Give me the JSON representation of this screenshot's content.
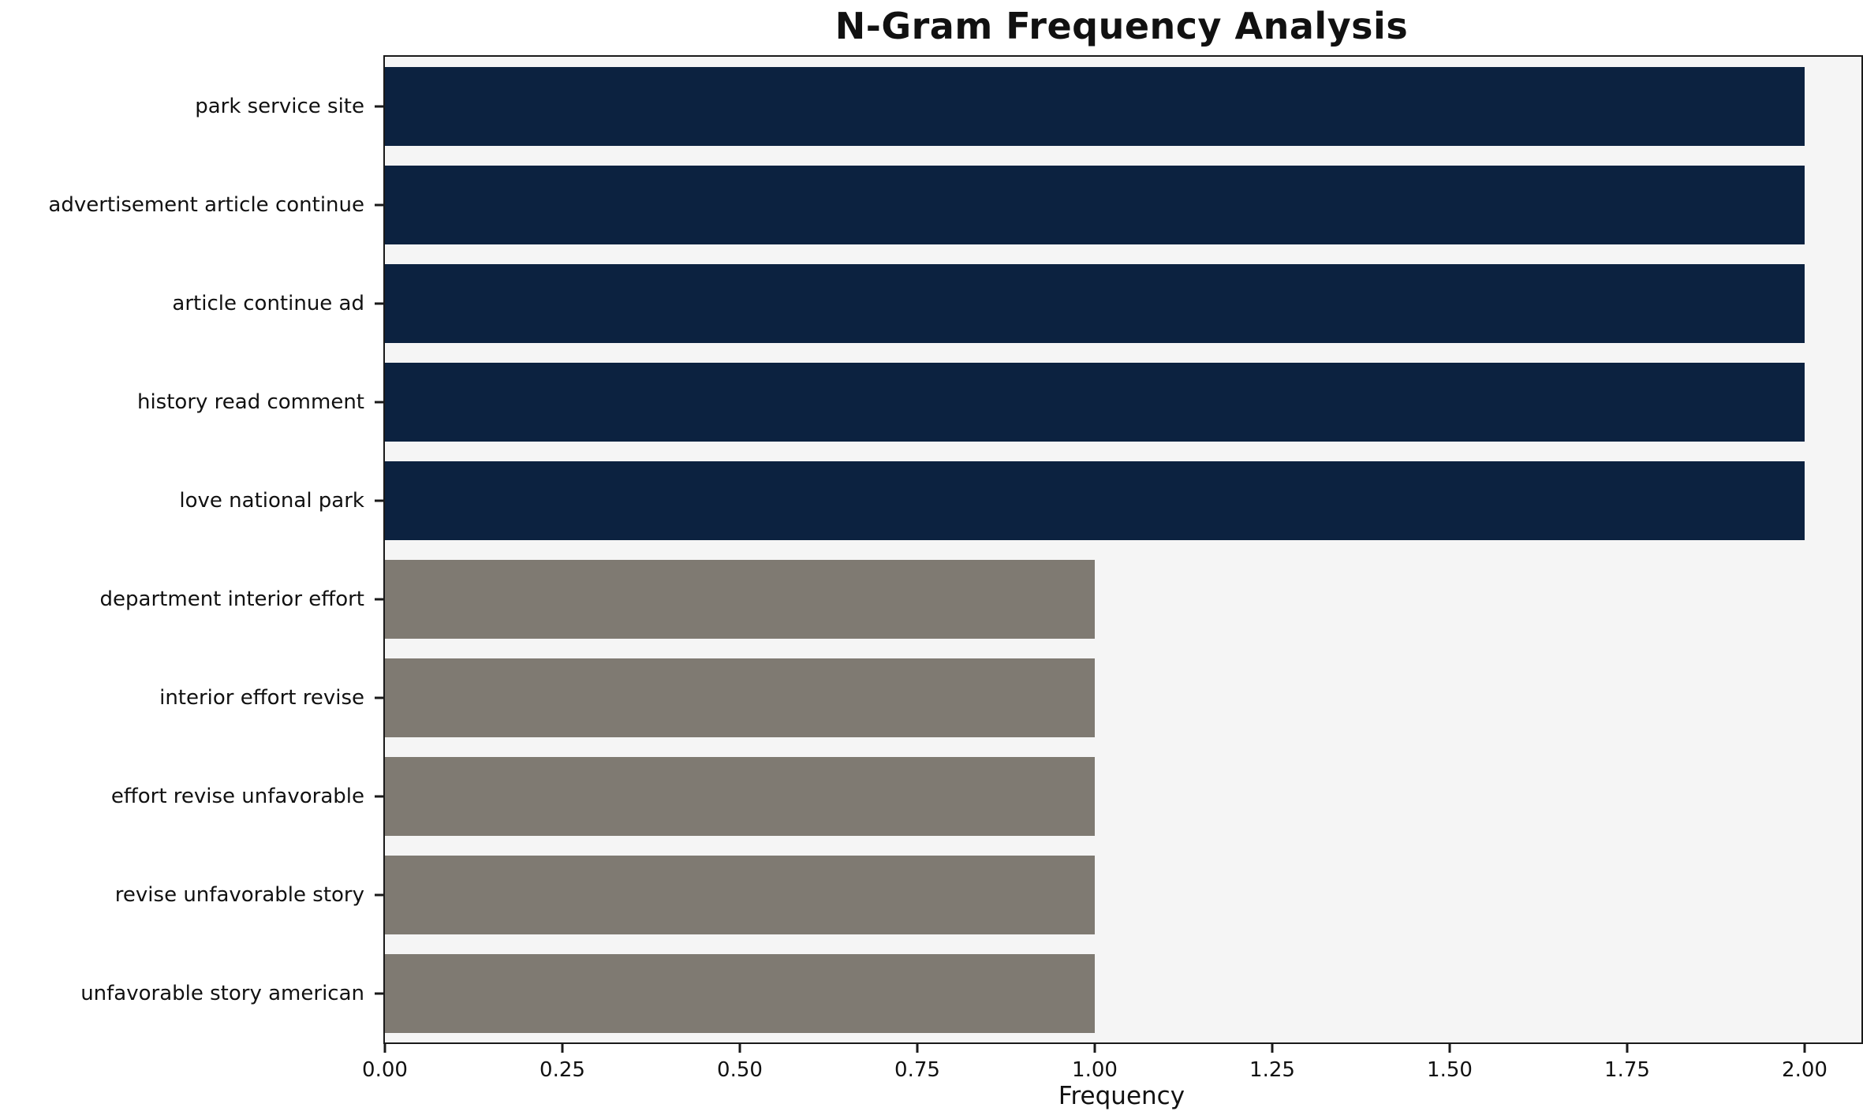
{
  "chart_data": {
    "type": "bar",
    "orientation": "horizontal",
    "title": "N-Gram Frequency Analysis",
    "xlabel": "Frequency",
    "ylabel": "",
    "categories": [
      "park service site",
      "advertisement article continue",
      "article continue ad",
      "history read comment",
      "love national park",
      "department interior effort",
      "interior effort revise",
      "effort revise unfavorable",
      "revise unfavorable story",
      "unfavorable story american"
    ],
    "values": [
      2,
      2,
      2,
      2,
      2,
      1,
      1,
      1,
      1,
      1
    ],
    "bar_colors": [
      "#0c2240",
      "#0c2240",
      "#0c2240",
      "#0c2240",
      "#0c2240",
      "#7f7a72",
      "#7f7a72",
      "#7f7a72",
      "#7f7a72",
      "#7f7a72"
    ],
    "x_ticks": [
      "0.00",
      "0.25",
      "0.50",
      "0.75",
      "1.00",
      "1.25",
      "1.50",
      "1.75",
      "2.00"
    ],
    "x_tick_values": [
      0,
      0.25,
      0.5,
      0.75,
      1,
      1.25,
      1.5,
      1.75,
      2
    ],
    "xlim": [
      0,
      2.08
    ],
    "grid": false,
    "legend": "none",
    "plot_bg": "#f5f5f5",
    "figure_bg": "#ffffff"
  }
}
